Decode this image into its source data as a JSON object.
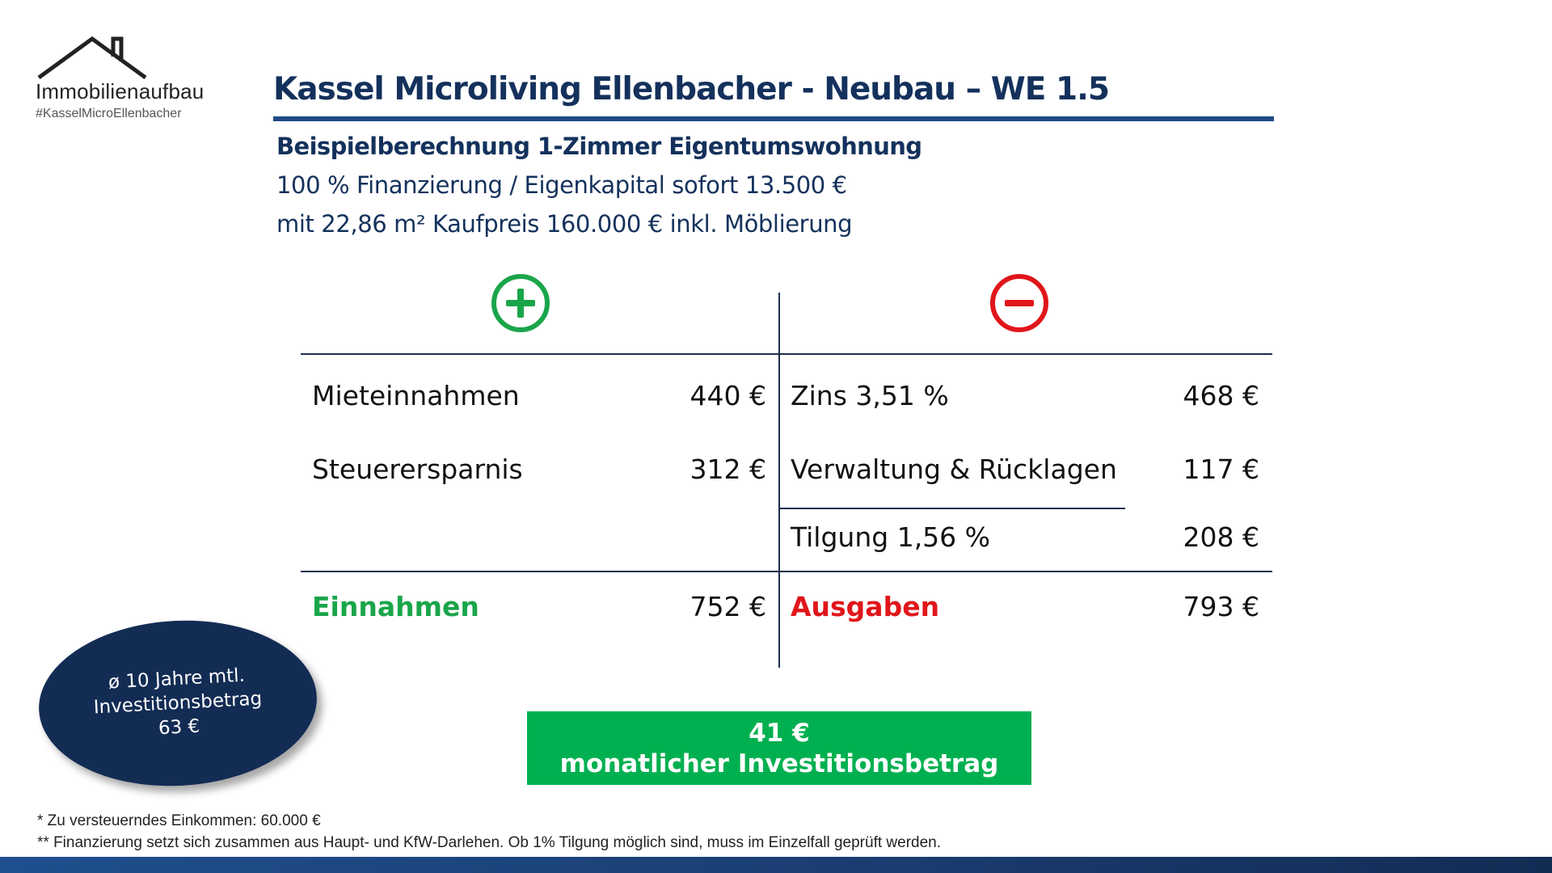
{
  "logo": {
    "name": "Immobilienaufbau",
    "tag": "#KasselMicroEllenbacher",
    "icon": "house-roof-icon"
  },
  "header": {
    "title": "Kassel Microliving Ellenbacher - Neubau – WE 1.5",
    "subtitle_bold": "Beispielberechnung 1-Zimmer Eigentumswohnung",
    "line2": "100 % Finanzierung / Eigenkapital sofort 13.500 €",
    "line3": "mit 22,86 m² Kaufpreis 160.000 € inkl. Möblierung"
  },
  "icons": {
    "plus": "plus-circle-icon",
    "minus": "minus-circle-icon",
    "plus_color": "#1aa54a",
    "minus_color": "#e0161b"
  },
  "income": {
    "rows": [
      {
        "label": "Mieteinnahmen",
        "value": "440 €"
      },
      {
        "label": "Steuerersparnis",
        "value": "312 €"
      }
    ],
    "total_label": "Einnahmen",
    "total_value": "752 €"
  },
  "expenses": {
    "rows": [
      {
        "label": "Zins 3,51 %",
        "value": "468 €"
      },
      {
        "label": "Verwaltung & Rücklagen",
        "value": "117 €"
      },
      {
        "label": "Tilgung 1,56 %",
        "value": "208 €"
      }
    ],
    "total_label": "Ausgaben",
    "total_value": "793 €"
  },
  "average": {
    "line1": "ø 10 Jahre mtl.",
    "line2": "Investitionsbetrag",
    "line3": "63 €"
  },
  "result": {
    "amount": "41 €",
    "label": "monatlicher Investitionsbetrag"
  },
  "footnotes": {
    "note1": "* Zu versteuerndes Einkommen: 60.000 €",
    "note2": "** Finanzierung setzt sich zusammen aus Haupt- und KfW-Darlehen. Ob 1% Tilgung möglich sind, muss im Einzelfall geprüft werden."
  },
  "colors": {
    "navy": "#14315c",
    "green": "#1aa54a",
    "red": "#e0161b",
    "box_green": "#00b050"
  }
}
